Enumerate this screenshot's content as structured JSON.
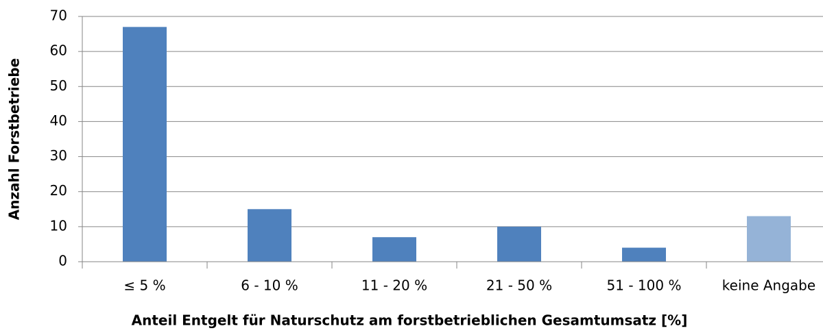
{
  "chart_data": {
    "type": "bar",
    "categories": [
      "≤ 5 %",
      "6 - 10 %",
      "11 - 20 %",
      "21 - 50 %",
      "51 - 100 %",
      "keine Angabe"
    ],
    "values": [
      67,
      15,
      7,
      10,
      4,
      13
    ],
    "colors": [
      "#4f81bd",
      "#4f81bd",
      "#4f81bd",
      "#4f81bd",
      "#4f81bd",
      "#95b3d7"
    ],
    "x_label": "Anteil Entgelt für Naturschutz am forstbetrieblichen Gesamtumsatz [%]",
    "y_label": "Anzahl Forstbetriebe",
    "ylim": [
      0,
      70
    ],
    "yticks": [
      0,
      10,
      20,
      30,
      40,
      50,
      60,
      70
    ],
    "grid": true
  }
}
